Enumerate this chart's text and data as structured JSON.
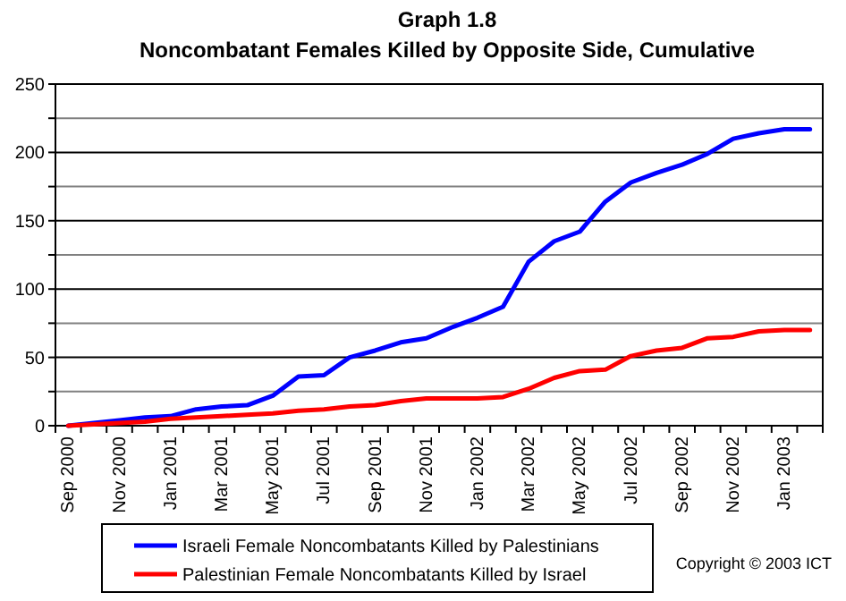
{
  "chart_data": {
    "type": "line",
    "title": "Graph 1.8",
    "subtitle": "Noncombatant Females Killed by Opposite Side, Cumulative",
    "categories": [
      "Sep 2000",
      null,
      "Nov 2000",
      null,
      "Jan 2001",
      null,
      "Mar 2001",
      null,
      "May 2001",
      null,
      "Jul 2001",
      null,
      "Sep 2001",
      null,
      "Nov 2001",
      null,
      "Jan 2002",
      null,
      "Mar 2002",
      null,
      "May 2002",
      null,
      "Jul 2002",
      null,
      "Sep 2002",
      null,
      "Nov 2002",
      null,
      "Jan 2003",
      null
    ],
    "series": [
      {
        "name": "Israeli Female Noncombatants Killed by Palestinians",
        "color": "#0000ff",
        "values": [
          0,
          2,
          4,
          6,
          7,
          12,
          14,
          15,
          22,
          36,
          37,
          50,
          55,
          61,
          64,
          72,
          79,
          87,
          120,
          135,
          142,
          164,
          178,
          185,
          191,
          199,
          210,
          214,
          217,
          217
        ]
      },
      {
        "name": "Palestinian Female Noncombatants Killed by Israel",
        "color": "#ff0000",
        "values": [
          0,
          1,
          2,
          3,
          5,
          6,
          7,
          8,
          9,
          11,
          12,
          14,
          15,
          18,
          20,
          20,
          20,
          21,
          27,
          35,
          40,
          41,
          51,
          55,
          57,
          64,
          65,
          69,
          70,
          70
        ]
      }
    ],
    "ylim": [
      0,
      250
    ],
    "yticks": [
      0,
      {
        "value": 25,
        "label": null
      },
      50,
      {
        "value": 75,
        "label": null
      },
      100,
      {
        "value": 125,
        "label": null
      },
      150,
      {
        "value": 175,
        "label": null
      },
      200,
      {
        "value": 225,
        "label": null
      },
      250
    ],
    "grid": true,
    "legend": "bottom",
    "marker": "none",
    "line_style": "solid",
    "annotations": [
      "Copyright © 2003 ICT"
    ]
  }
}
